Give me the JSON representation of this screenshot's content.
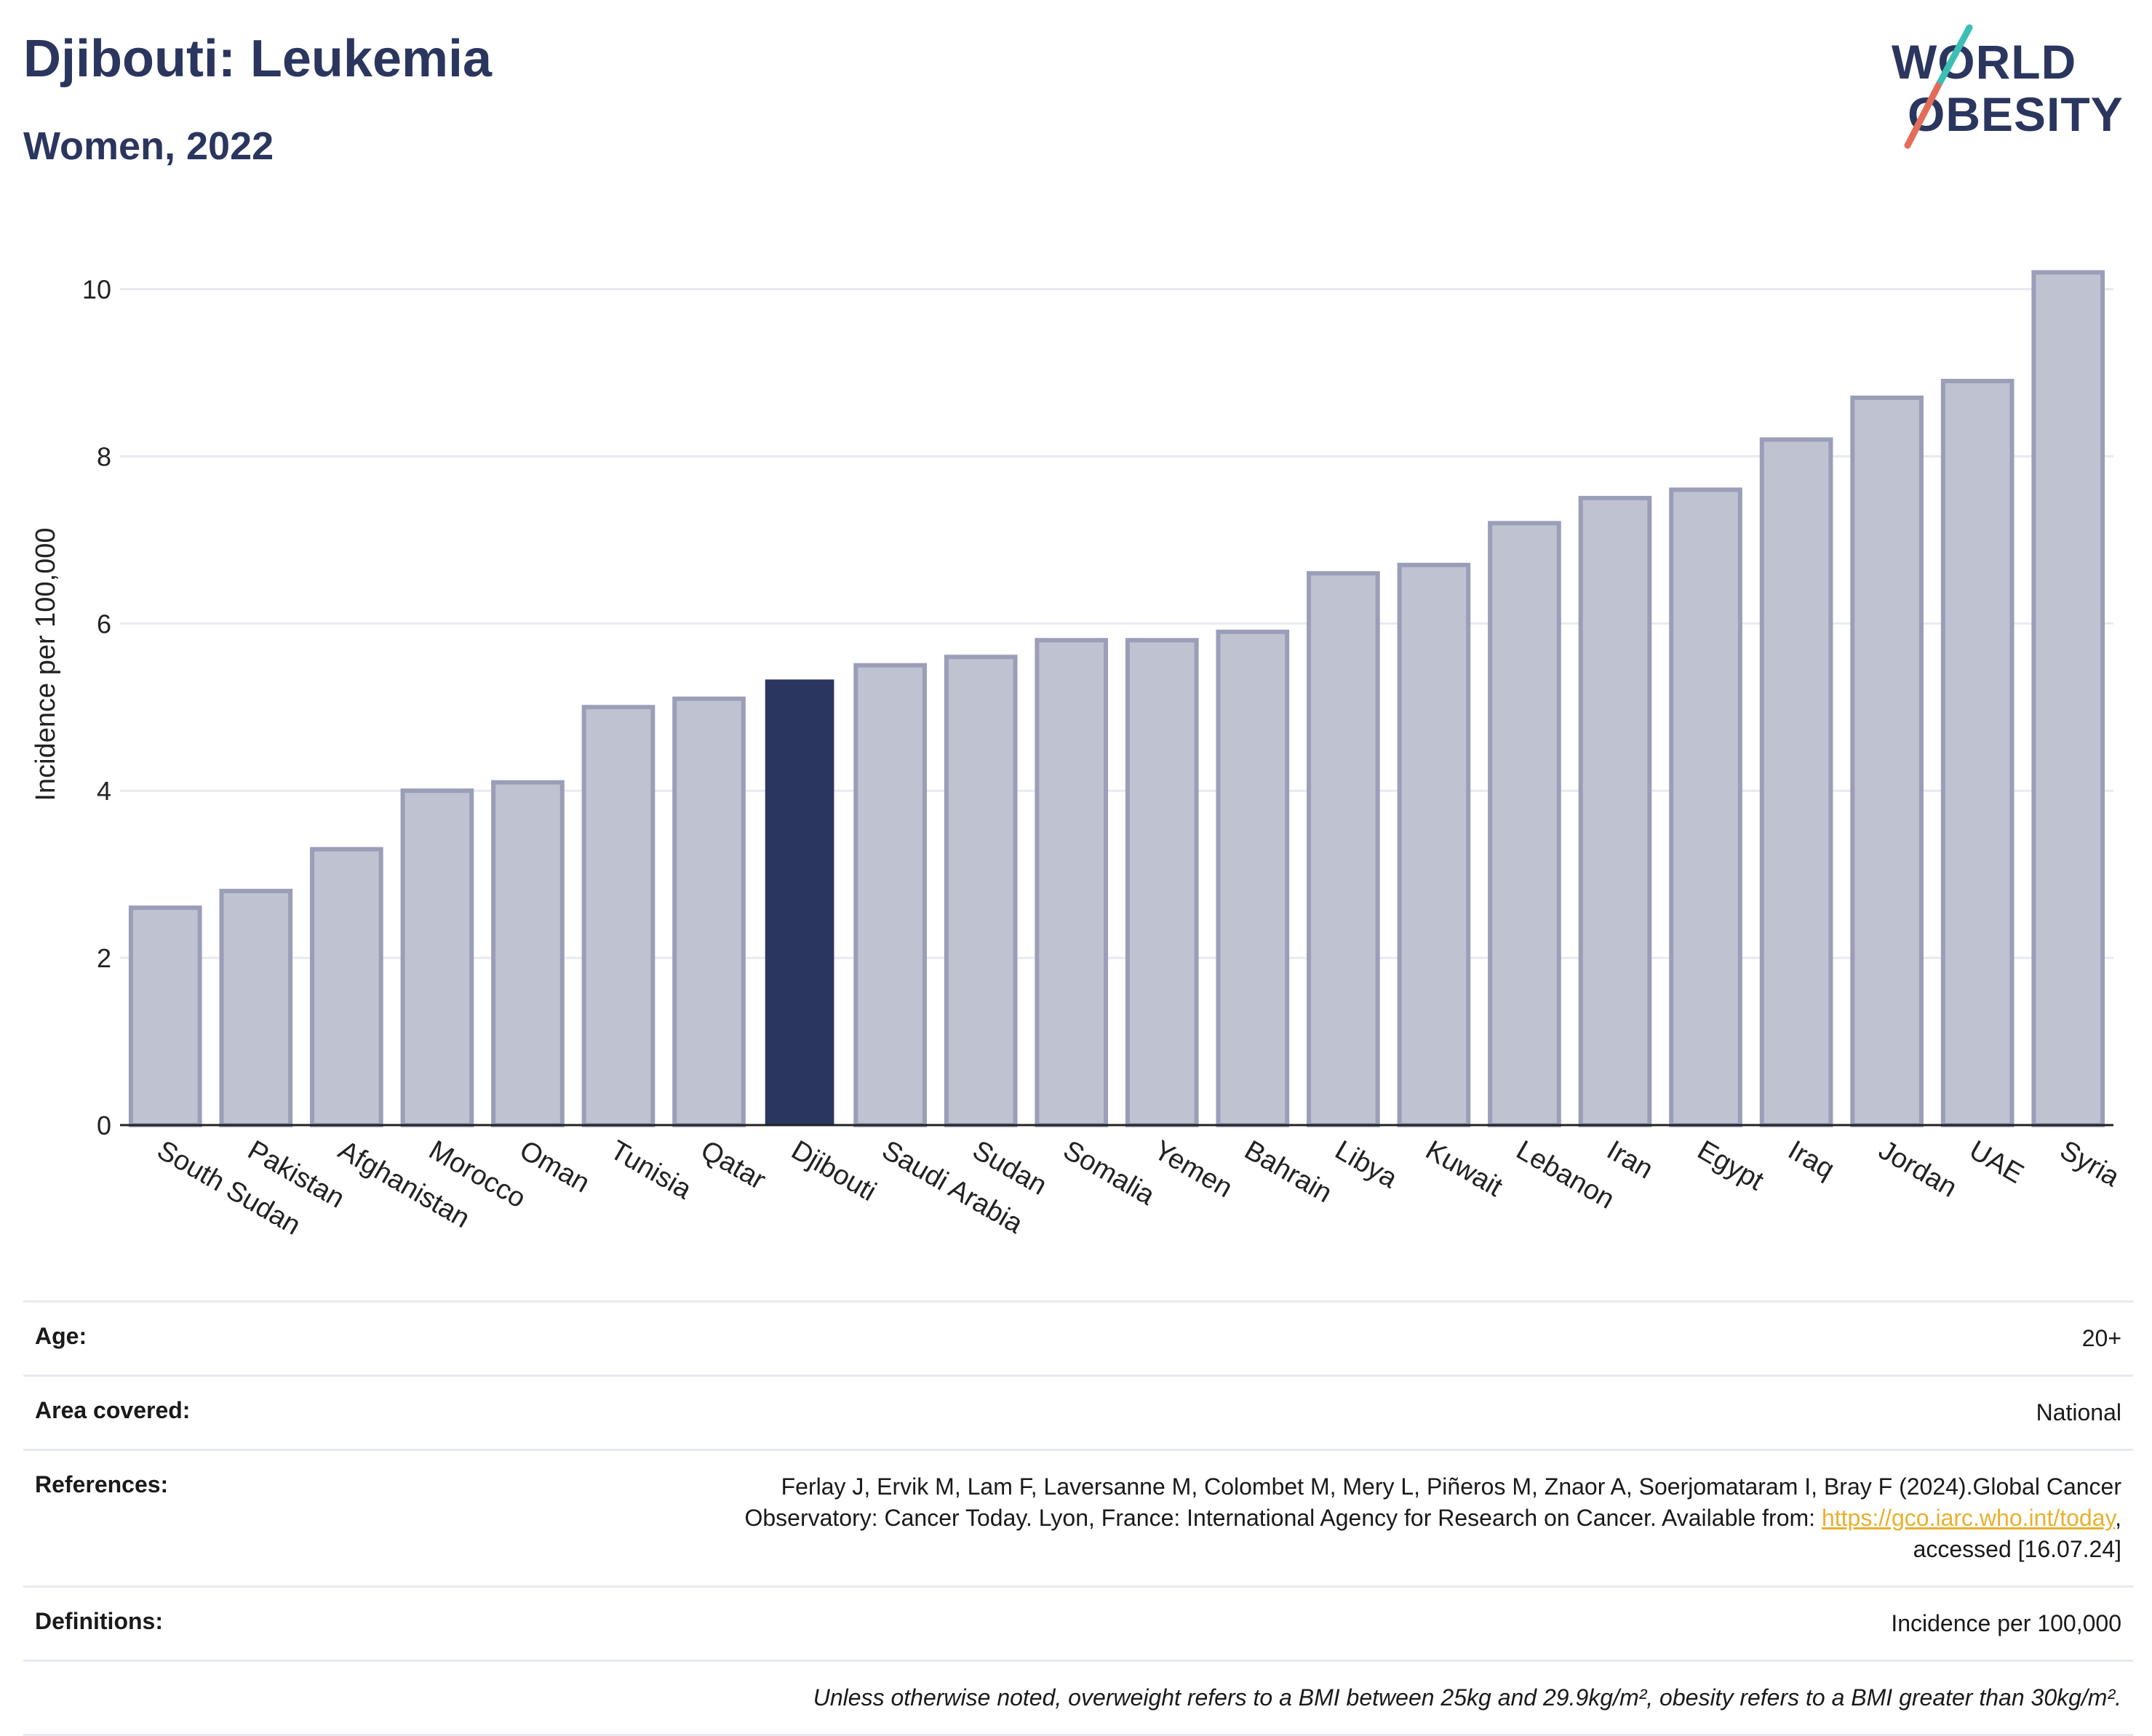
{
  "header": {
    "title": "Djibouti: Leukemia",
    "subtitle": "Women, 2022"
  },
  "logo": {
    "line1": "WORLD",
    "line2": "OBESITY"
  },
  "chart_data": {
    "type": "bar",
    "ylabel": "Incidence per 100,000",
    "ylim": [
      0,
      10.5
    ],
    "yticks": [
      0,
      2,
      4,
      6,
      8,
      10
    ],
    "grid": true,
    "highlight": "Djibouti",
    "colors": {
      "bar": "#bfc2d0",
      "bar_border": "#9a9eb8",
      "highlight": "#2b365f"
    },
    "categories": [
      "South Sudan",
      "Pakistan",
      "Afghanistan",
      "Morocco",
      "Oman",
      "Tunisia",
      "Qatar",
      "Djibouti",
      "Saudi Arabia",
      "Sudan",
      "Somalia",
      "Yemen",
      "Bahrain",
      "Libya",
      "Kuwait",
      "Lebanon",
      "Iran",
      "Egypt",
      "Iraq",
      "Jordan",
      "UAE",
      "Syria"
    ],
    "values": [
      2.6,
      2.8,
      3.3,
      4.0,
      4.1,
      5.0,
      5.1,
      5.33,
      5.5,
      5.6,
      5.8,
      5.8,
      5.9,
      6.6,
      6.7,
      7.2,
      7.5,
      7.6,
      8.2,
      8.7,
      8.9,
      10.2
    ]
  },
  "info": {
    "age_label": "Age:",
    "age_value": "20+",
    "area_label": "Area covered:",
    "area_value": "National",
    "references_label": "References:",
    "references_text_1": "Ferlay J, Ervik M, Lam F, Laversanne M, Colombet M, Mery L, Piñeros M, Znaor A, Soerjomataram I, Bray F (2024).Global Cancer",
    "references_text_2": "Observatory: Cancer Today. Lyon, France: International Agency for Research on Cancer. Available from: ",
    "references_link": "https://gco.iarc.who.int/today",
    "references_text_3": "accessed [16.07.24]",
    "definitions_label": "Definitions:",
    "definitions_value": "Incidence per 100,000",
    "note": "Unless otherwise noted, overweight refers to a BMI between 25kg and 29.9kg/m², obesity refers to a BMI greater than 30kg/m²."
  }
}
